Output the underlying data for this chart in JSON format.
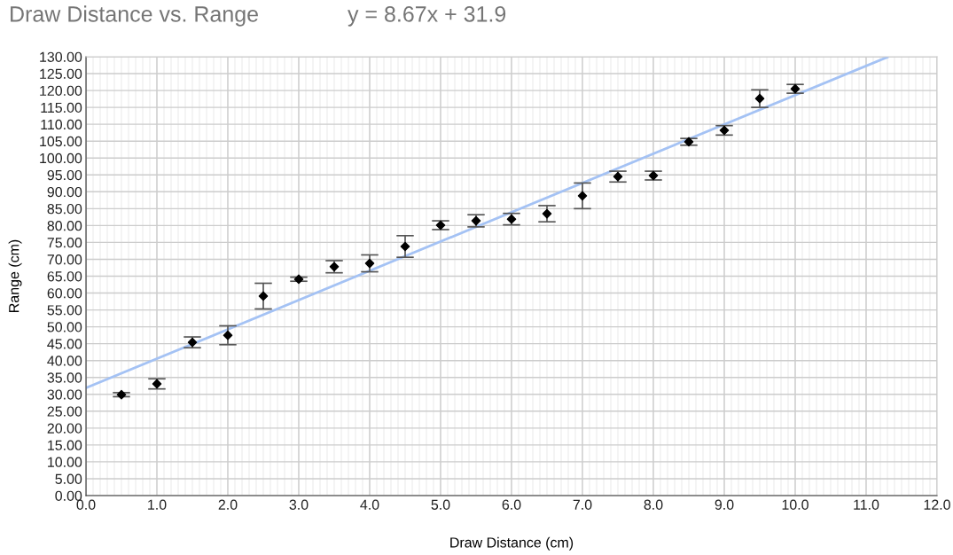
{
  "chart_data": {
    "type": "scatter",
    "title": "Draw Distance vs. Range",
    "xlabel": "Draw Distance (cm)",
    "ylabel": "Range (cm)",
    "annotations": [
      "y = 8.67x + 31.9"
    ],
    "series": [
      {
        "color": "#000000",
        "marker": "diamond",
        "x": [
          0.5,
          1.0,
          1.5,
          2.0,
          2.5,
          3.0,
          3.5,
          4.0,
          4.5,
          5.0,
          5.5,
          6.0,
          6.5,
          7.0,
          7.5,
          8.0,
          8.5,
          9.0,
          9.5,
          10.0
        ],
        "values": [
          29.9,
          33.1,
          45.4,
          47.5,
          59.1,
          64.1,
          67.8,
          68.8,
          73.8,
          80.1,
          81.4,
          81.9,
          83.5,
          88.8,
          94.5,
          94.8,
          104.8,
          108.2,
          117.6,
          120.5
        ],
        "errors": [
          0.6,
          1.5,
          1.6,
          2.8,
          3.8,
          0.6,
          1.8,
          2.5,
          3.2,
          1.3,
          1.8,
          1.7,
          2.4,
          3.8,
          1.6,
          1.3,
          1.0,
          1.4,
          2.6,
          1.3
        ]
      },
      {
        "type": "line",
        "color": "#a4c2f4",
        "marker": "none",
        "x": [
          0,
          11.3
        ],
        "values": [
          31.9,
          129.9
        ]
      }
    ],
    "xlim": [
      0,
      12
    ],
    "ylim": [
      0,
      130
    ],
    "xticks": [
      {
        "value": 0,
        "label": "0.0"
      },
      {
        "value": 1,
        "label": "1.0"
      },
      {
        "value": 2,
        "label": "2.0"
      },
      {
        "value": 3,
        "label": "3.0"
      },
      {
        "value": 4,
        "label": "4.0"
      },
      {
        "value": 5,
        "label": "5.0"
      },
      {
        "value": 6,
        "label": "6.0"
      },
      {
        "value": 7,
        "label": "7.0"
      },
      {
        "value": 8,
        "label": "8.0"
      },
      {
        "value": 9,
        "label": "9.0"
      },
      {
        "value": 10,
        "label": "10.0"
      },
      {
        "value": 11,
        "label": "11.0"
      },
      {
        "value": 12,
        "label": "12.0"
      }
    ],
    "yticks": [
      {
        "value": 0,
        "label": "0.00"
      },
      {
        "value": 5,
        "label": "5.00"
      },
      {
        "value": 10,
        "label": "10.00"
      },
      {
        "value": 15,
        "label": "15.00"
      },
      {
        "value": 20,
        "label": "20.00"
      },
      {
        "value": 25,
        "label": "25.00"
      },
      {
        "value": 30,
        "label": "30.00"
      },
      {
        "value": 35,
        "label": "35.00"
      },
      {
        "value": 40,
        "label": "40.00"
      },
      {
        "value": 45,
        "label": "45.00"
      },
      {
        "value": 50,
        "label": "50.00"
      },
      {
        "value": 55,
        "label": "55.00"
      },
      {
        "value": 60,
        "label": "60.00"
      },
      {
        "value": 65,
        "label": "65.00"
      },
      {
        "value": 70,
        "label": "70.00"
      },
      {
        "value": 75,
        "label": "75.00"
      },
      {
        "value": 80,
        "label": "80.00"
      },
      {
        "value": 85,
        "label": "85.00"
      },
      {
        "value": 90,
        "label": "90.00"
      },
      {
        "value": 95,
        "label": "95.00"
      },
      {
        "value": 100,
        "label": "100.00"
      },
      {
        "value": 105,
        "label": "105.00"
      },
      {
        "value": 110,
        "label": "110.00"
      },
      {
        "value": 115,
        "label": "115.00"
      },
      {
        "value": 120,
        "label": "120.00"
      },
      {
        "value": 125,
        "label": "125.00"
      },
      {
        "value": 130,
        "label": "130.00"
      }
    ],
    "grid": true
  }
}
